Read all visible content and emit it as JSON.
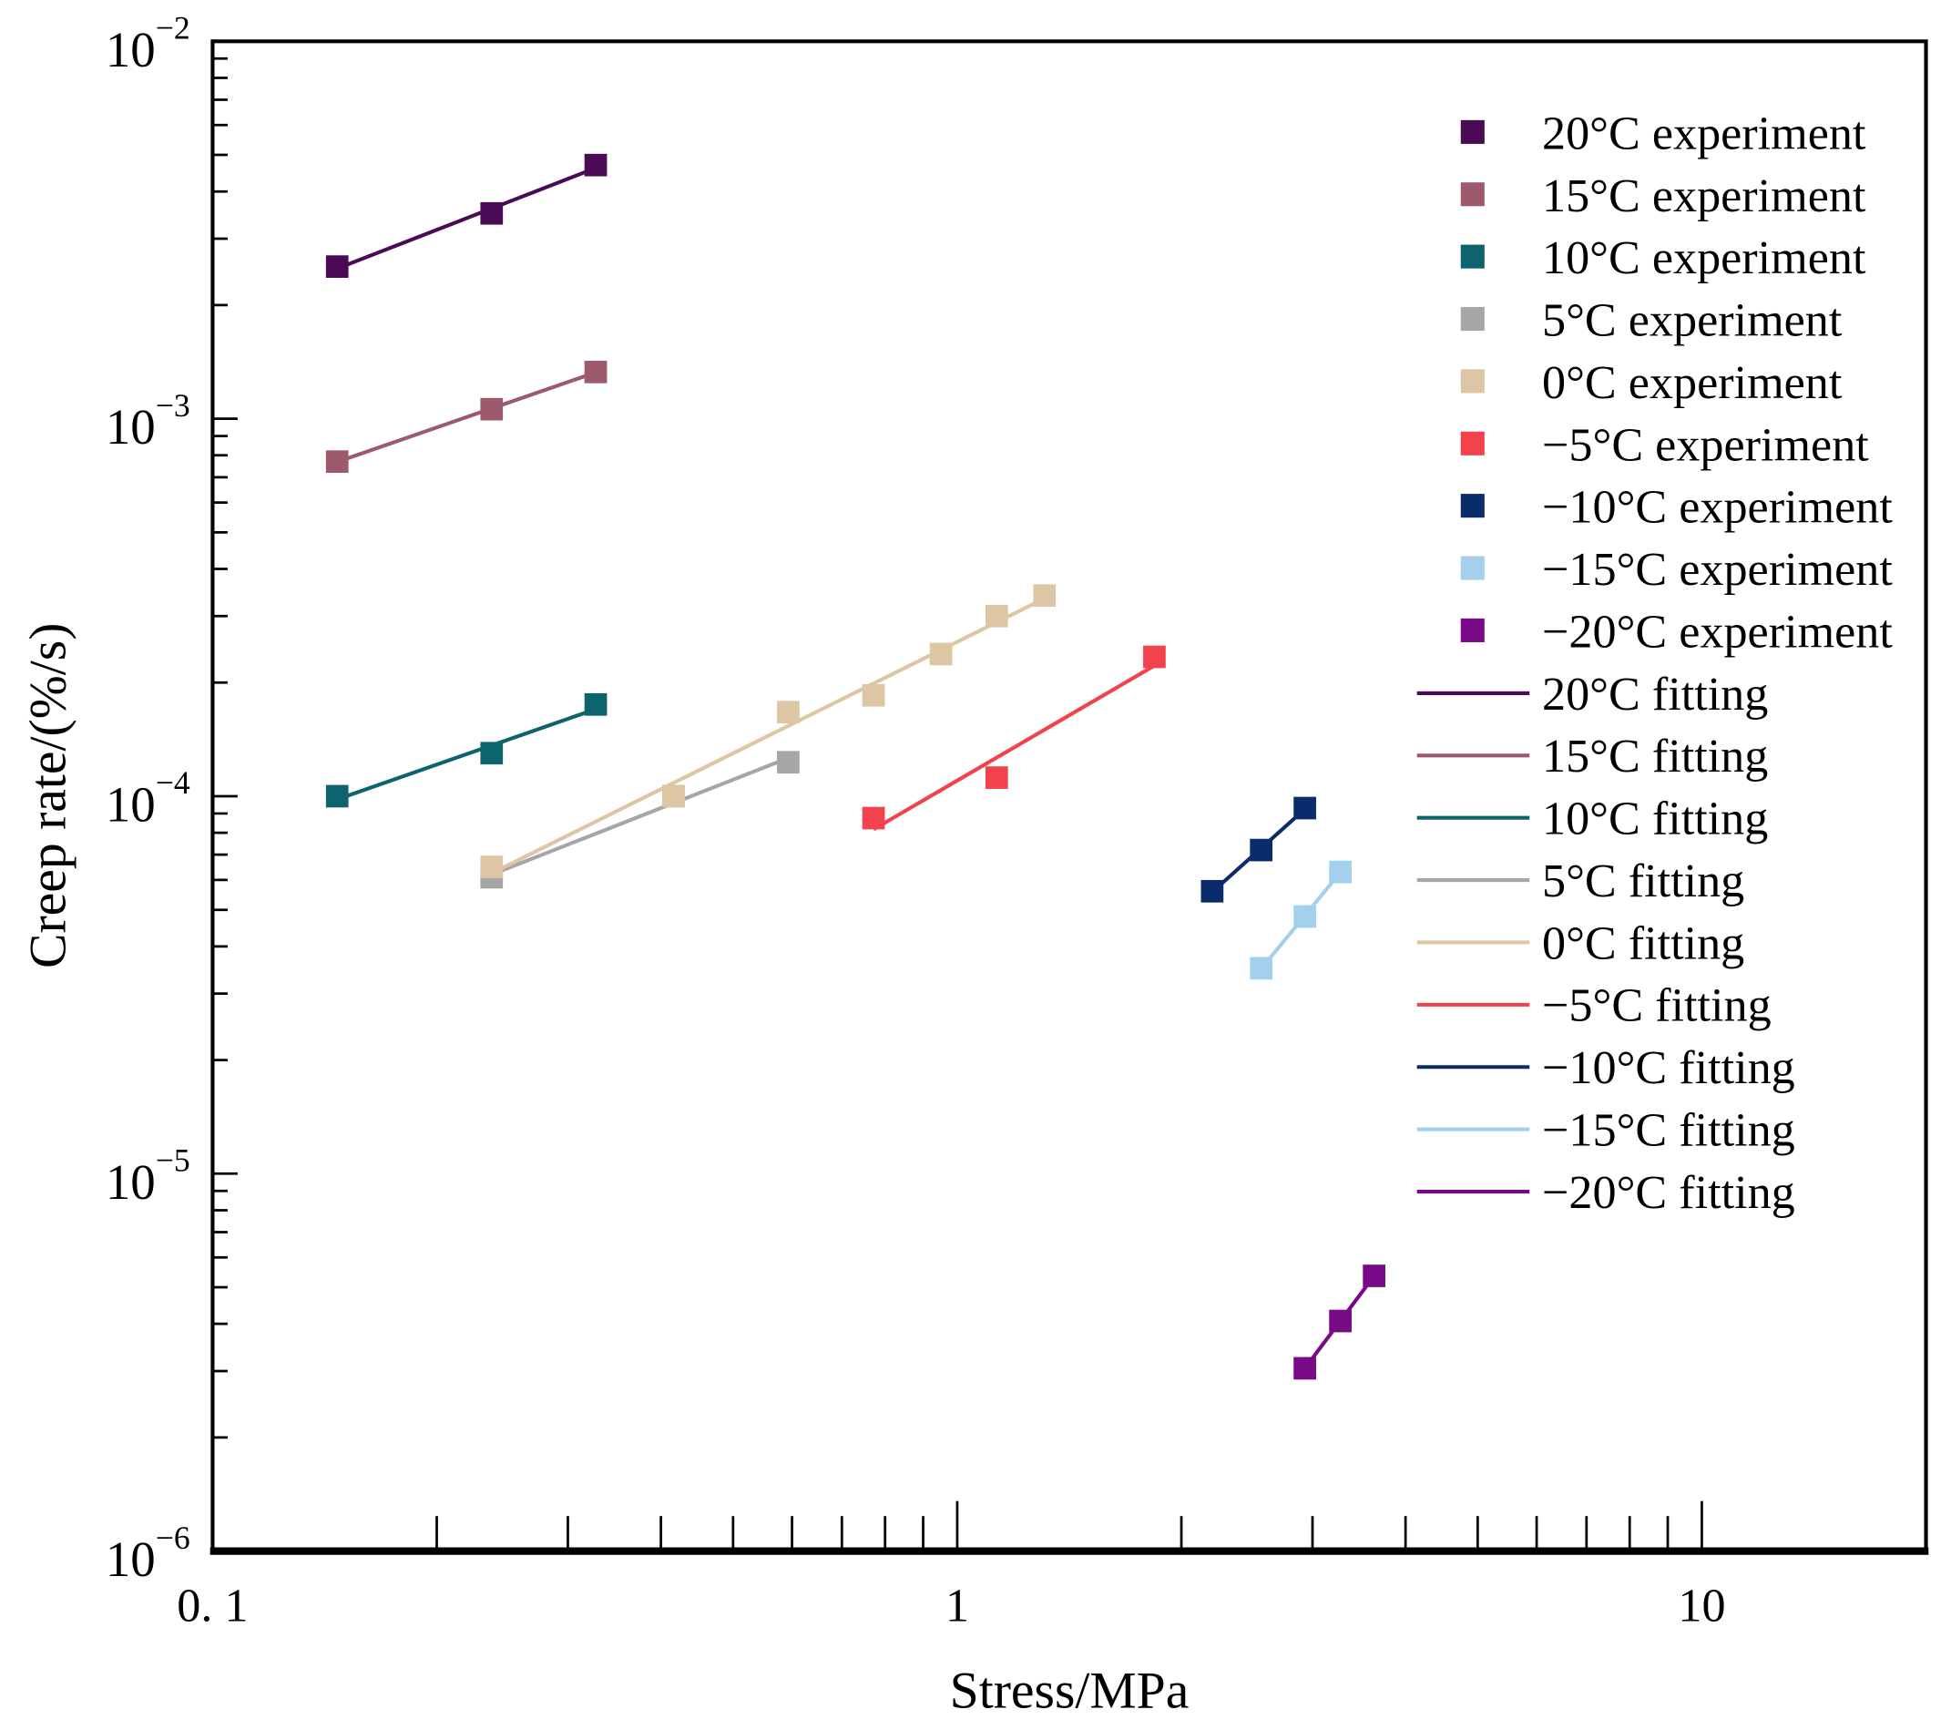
{
  "chart_data": {
    "type": "scatter",
    "xscale": "log",
    "yscale": "log",
    "xlabel": "Stress/MPa",
    "ylabel": "Creep rate/(%/s)",
    "xlim": [
      0.1,
      20
    ],
    "ylim": [
      1e-06,
      0.01
    ],
    "xticks": [
      {
        "v": 0.1,
        "label": "0. 1"
      },
      {
        "v": 1,
        "label": "1"
      },
      {
        "v": 10,
        "label": "10"
      }
    ],
    "yticks": [
      {
        "v": 1e-06,
        "base": "10",
        "exp": "−6"
      },
      {
        "v": 1e-05,
        "base": "10",
        "exp": "−5"
      },
      {
        "v": 0.0001,
        "base": "10",
        "exp": "−4"
      },
      {
        "v": 0.001,
        "base": "10",
        "exp": "−3"
      },
      {
        "v": 0.01,
        "base": "10",
        "exp": "−2"
      }
    ],
    "legend_position": "top-right",
    "series": [
      {
        "temp": "20°C",
        "exp_label": "20°C experiment",
        "fit_label": "20°C fitting",
        "color": "#4b0a55",
        "x": [
          0.147,
          0.237,
          0.327
        ],
        "y": [
          0.00253,
          0.0035,
          0.0047
        ]
      },
      {
        "temp": "15°C",
        "exp_label": "15°C experiment",
        "fit_label": "15°C fitting",
        "color": "#9c5a6c",
        "x": [
          0.147,
          0.237,
          0.327
        ],
        "y": [
          0.00077,
          0.00106,
          0.00133
        ]
      },
      {
        "temp": "10°C",
        "exp_label": "10°C experiment",
        "fit_label": "10°C fitting",
        "color": "#0d646f",
        "x": [
          0.147,
          0.237,
          0.327
        ],
        "y": [
          0.0001,
          0.00013,
          0.000175
        ]
      },
      {
        "temp": "5°C",
        "exp_label": "5°C experiment",
        "fit_label": "5°C fitting",
        "color": "#a6a6a6",
        "x": [
          0.237,
          0.416,
          0.593
        ],
        "y": [
          6.1e-05,
          0.0001,
          0.000123
        ]
      },
      {
        "temp": "0°C",
        "exp_label": "0°C experiment",
        "fit_label": "0°C fitting",
        "color": "#dcc6a4",
        "x": [
          0.237,
          0.416,
          0.593,
          0.772,
          0.951,
          1.13,
          1.31
        ],
        "y": [
          6.5e-05,
          0.0001,
          0.000167,
          0.000185,
          0.000238,
          0.0003,
          0.00034
        ]
      },
      {
        "temp": "−5°C",
        "exp_label": "−5°C experiment",
        "fit_label": "−5°C fitting",
        "color": "#f2434c",
        "x": [
          0.772,
          1.13,
          1.84
        ],
        "y": [
          8.75e-05,
          0.000112,
          0.000234
        ]
      },
      {
        "temp": "−10°C",
        "exp_label": "−10°C experiment",
        "fit_label": "−10°C fitting",
        "color": "#0b2c6b",
        "x": [
          2.2,
          2.56,
          2.93
        ],
        "y": [
          5.6e-05,
          7.2e-05,
          9.3e-05
        ]
      },
      {
        "temp": "−15°C",
        "exp_label": "−15°C experiment",
        "fit_label": "−15°C fitting",
        "color": "#a3d0ec",
        "x": [
          2.56,
          2.93,
          3.27
        ],
        "y": [
          3.5e-05,
          4.8e-05,
          6.3e-05
        ]
      },
      {
        "temp": "−20°C",
        "exp_label": "−20°C experiment",
        "fit_label": "−20°C fitting",
        "color": "#780a88",
        "x": [
          2.93,
          3.27,
          3.63
        ],
        "y": [
          3.05e-06,
          4.07e-06,
          5.36e-06
        ]
      }
    ]
  }
}
